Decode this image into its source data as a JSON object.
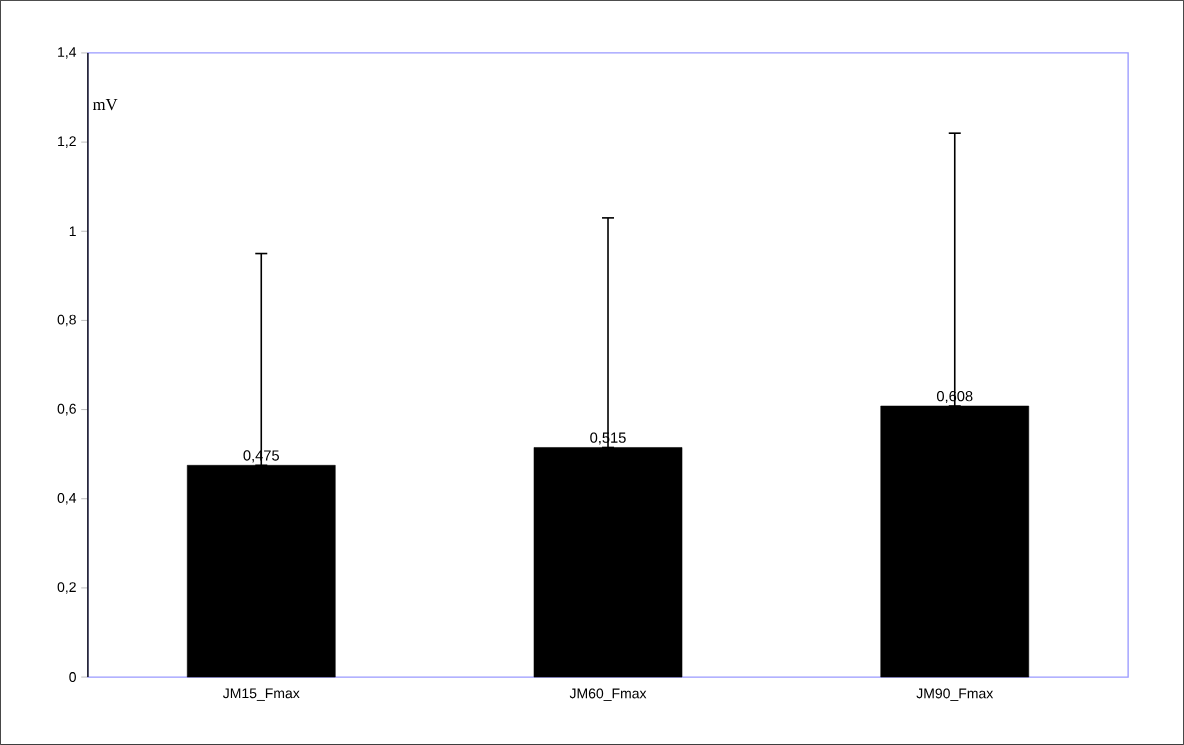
{
  "chart_data": {
    "type": "bar",
    "annotations": [
      "mV"
    ],
    "categories": [
      "JM15_Fmax",
      "JM60_Fmax",
      "JM90_Fmax"
    ],
    "values": [
      0.475,
      0.515,
      0.608
    ],
    "value_labels": [
      "0,475",
      "0,515",
      "0,608"
    ],
    "errors": [
      [
        0.475,
        0.95
      ],
      [
        0.515,
        1.03
      ],
      [
        0.608,
        1.22
      ]
    ],
    "color": "#000000",
    "ylim": [
      0,
      1.4
    ],
    "yticks": [
      0,
      {
        "value": 0.2,
        "label": "0,2"
      },
      {
        "value": 0.4,
        "label": "0,4"
      },
      {
        "value": 0.6,
        "label": "0,6"
      },
      {
        "value": 0.8,
        "label": "0,8"
      },
      1,
      {
        "value": 1.2,
        "label": "1,2"
      },
      {
        "value": 1.4,
        "label": "1,4"
      }
    ],
    "grid": false
  }
}
